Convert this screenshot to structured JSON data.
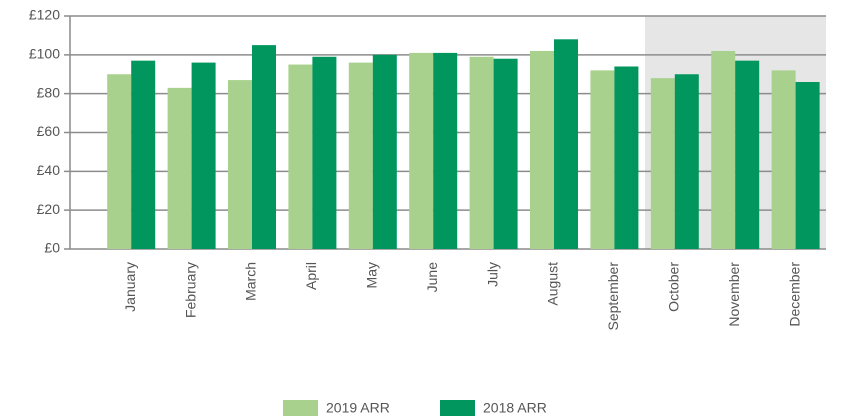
{
  "chart_data": {
    "type": "bar",
    "categories": [
      "January",
      "February",
      "March",
      "April",
      "May",
      "June",
      "July",
      "August",
      "September",
      "October",
      "November",
      "December"
    ],
    "series": [
      {
        "name": "2019 ARR",
        "color": "#a9d18e",
        "values": [
          90,
          83,
          87,
          95,
          96,
          101,
          99,
          102,
          92,
          88,
          102,
          92
        ]
      },
      {
        "name": "2018 ARR",
        "color": "#00965e",
        "values": [
          97,
          96,
          105,
          99,
          100,
          101,
          98,
          108,
          94,
          90,
          97,
          86
        ]
      }
    ],
    "ylim": [
      0,
      120
    ],
    "yticks": [
      {
        "value": 0,
        "label": "£0"
      },
      {
        "value": 20,
        "label": "£20"
      },
      {
        "value": 40,
        "label": "£40"
      },
      {
        "value": 60,
        "label": "£60"
      },
      {
        "value": 80,
        "label": "£80"
      },
      {
        "value": 100,
        "label": "£100"
      },
      {
        "value": 120,
        "label": "£120"
      }
    ],
    "grid": true,
    "legend": "bottom"
  }
}
